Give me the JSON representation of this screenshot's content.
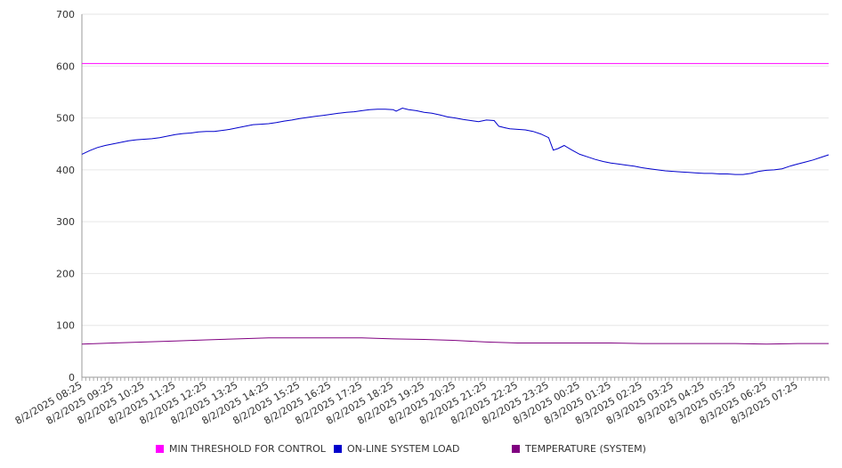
{
  "chart_data": {
    "type": "line",
    "ylim": [
      0,
      700
    ],
    "yticks": [
      0,
      100,
      200,
      300,
      400,
      500,
      600,
      700
    ],
    "grid": true,
    "legend_position": "bottom",
    "x_labels": [
      "8/2/2025 08:25",
      "8/2/2025 09:25",
      "8/2/2025 10:25",
      "8/2/2025 11:25",
      "8/2/2025 12:25",
      "8/2/2025 13:25",
      "8/2/2025 14:25",
      "8/2/2025 15:25",
      "8/2/2025 16:25",
      "8/2/2025 17:25",
      "8/2/2025 18:25",
      "8/2/2025 19:25",
      "8/2/2025 20:25",
      "8/2/2025 21:25",
      "8/2/2025 22:25",
      "8/2/2025 23:25",
      "8/3/2025 00:25",
      "8/3/2025 01:25",
      "8/3/2025 02:25",
      "8/3/2025 03:25",
      "8/3/2025 04:25",
      "8/3/2025 05:25",
      "8/3/2025 06:25",
      "8/3/2025 07:25"
    ],
    "x_range_hours": [
      0,
      24
    ],
    "series": [
      {
        "name": "MIN THRESHOLD FOR CONTROL",
        "color": "#ff00ff",
        "points": [
          [
            0,
            605
          ],
          [
            24,
            605
          ]
        ]
      },
      {
        "name": "ON-LINE SYSTEM LOAD",
        "color": "#0000cc",
        "points": [
          [
            0,
            430
          ],
          [
            0.25,
            437
          ],
          [
            0.5,
            443
          ],
          [
            0.75,
            447
          ],
          [
            1,
            450
          ],
          [
            1.25,
            453
          ],
          [
            1.5,
            456
          ],
          [
            1.75,
            458
          ],
          [
            2,
            459
          ],
          [
            2.25,
            460
          ],
          [
            2.5,
            462
          ],
          [
            2.75,
            465
          ],
          [
            3,
            468
          ],
          [
            3.25,
            470
          ],
          [
            3.5,
            471
          ],
          [
            3.75,
            473
          ],
          [
            4,
            474
          ],
          [
            4.25,
            474
          ],
          [
            4.5,
            476
          ],
          [
            4.75,
            478
          ],
          [
            5,
            481
          ],
          [
            5.25,
            484
          ],
          [
            5.5,
            487
          ],
          [
            5.75,
            488
          ],
          [
            6,
            489
          ],
          [
            6.25,
            491
          ],
          [
            6.5,
            494
          ],
          [
            6.75,
            496
          ],
          [
            7,
            499
          ],
          [
            7.25,
            501
          ],
          [
            7.5,
            503
          ],
          [
            7.75,
            505
          ],
          [
            8,
            507
          ],
          [
            8.25,
            509
          ],
          [
            8.5,
            511
          ],
          [
            8.75,
            512
          ],
          [
            9,
            514
          ],
          [
            9.25,
            516
          ],
          [
            9.5,
            517
          ],
          [
            9.75,
            517
          ],
          [
            10,
            516
          ],
          [
            10.1,
            513
          ],
          [
            10.3,
            519
          ],
          [
            10.5,
            516
          ],
          [
            10.75,
            514
          ],
          [
            11,
            511
          ],
          [
            11.25,
            509
          ],
          [
            11.5,
            506
          ],
          [
            11.75,
            502
          ],
          [
            12,
            500
          ],
          [
            12.25,
            497
          ],
          [
            12.5,
            495
          ],
          [
            12.75,
            493
          ],
          [
            13,
            496
          ],
          [
            13.25,
            495
          ],
          [
            13.4,
            484
          ],
          [
            13.6,
            481
          ],
          [
            13.75,
            479
          ],
          [
            14,
            478
          ],
          [
            14.25,
            477
          ],
          [
            14.5,
            474
          ],
          [
            14.75,
            469
          ],
          [
            15,
            462
          ],
          [
            15.15,
            438
          ],
          [
            15.3,
            441
          ],
          [
            15.5,
            447
          ],
          [
            15.75,
            438
          ],
          [
            16,
            430
          ],
          [
            16.25,
            425
          ],
          [
            16.5,
            420
          ],
          [
            16.75,
            416
          ],
          [
            17,
            413
          ],
          [
            17.25,
            411
          ],
          [
            17.5,
            409
          ],
          [
            17.75,
            407
          ],
          [
            18,
            404
          ],
          [
            18.25,
            402
          ],
          [
            18.5,
            400
          ],
          [
            18.75,
            398
          ],
          [
            19,
            397
          ],
          [
            19.25,
            396
          ],
          [
            19.5,
            395
          ],
          [
            19.75,
            394
          ],
          [
            20,
            393
          ],
          [
            20.25,
            393
          ],
          [
            20.5,
            392
          ],
          [
            20.75,
            392
          ],
          [
            21,
            391
          ],
          [
            21.25,
            391
          ],
          [
            21.5,
            393
          ],
          [
            21.75,
            397
          ],
          [
            22,
            399
          ],
          [
            22.25,
            400
          ],
          [
            22.5,
            402
          ],
          [
            22.75,
            407
          ],
          [
            23,
            411
          ],
          [
            23.25,
            415
          ],
          [
            23.5,
            419
          ],
          [
            23.75,
            424
          ],
          [
            24,
            429
          ]
        ]
      },
      {
        "name": "TEMPERATURE (SYSTEM)",
        "color": "#800080",
        "points": [
          [
            0,
            64
          ],
          [
            1,
            66
          ],
          [
            2,
            68
          ],
          [
            3,
            70
          ],
          [
            4,
            72
          ],
          [
            5,
            74
          ],
          [
            6,
            76
          ],
          [
            7,
            76
          ],
          [
            8,
            76
          ],
          [
            9,
            76
          ],
          [
            10,
            74
          ],
          [
            11,
            73
          ],
          [
            12,
            71
          ],
          [
            13,
            68
          ],
          [
            14,
            66
          ],
          [
            15,
            66
          ],
          [
            16,
            66
          ],
          [
            17,
            66
          ],
          [
            18,
            65
          ],
          [
            19,
            65
          ],
          [
            20,
            65
          ],
          [
            21,
            65
          ],
          [
            22,
            64
          ],
          [
            23,
            65
          ],
          [
            24,
            65
          ]
        ]
      }
    ]
  }
}
